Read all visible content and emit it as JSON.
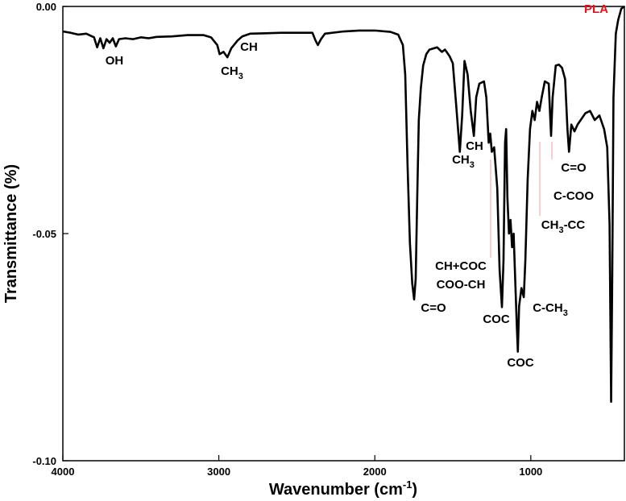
{
  "chart_data": {
    "type": "line",
    "x_label": {
      "text": "Wavenumber (cm",
      "sup": "-1",
      "close": ")"
    },
    "y_label": "Transmittance (%)",
    "xlim": [
      4000,
      400
    ],
    "ylim": [
      -0.1,
      0.0
    ],
    "xticks": [
      4000,
      3000,
      2000,
      1000
    ],
    "yticks": [
      {
        "value": 0.0,
        "label": "0.00"
      },
      {
        "value": -0.05,
        "label": "-0.05"
      },
      {
        "value": -0.1,
        "label": "-0.10"
      }
    ],
    "x": [
      4000,
      3950,
      3900,
      3850,
      3800,
      3780,
      3760,
      3740,
      3720,
      3700,
      3680,
      3660,
      3640,
      3600,
      3550,
      3500,
      3450,
      3400,
      3300,
      3200,
      3100,
      3050,
      3010,
      2995,
      2970,
      2945,
      2920,
      2880,
      2850,
      2800,
      2700,
      2600,
      2500,
      2400,
      2380,
      2365,
      2345,
      2320,
      2200,
      2100,
      2000,
      1900,
      1850,
      1820,
      1805,
      1790,
      1775,
      1760,
      1748,
      1738,
      1728,
      1718,
      1705,
      1690,
      1670,
      1650,
      1620,
      1600,
      1570,
      1550,
      1520,
      1500,
      1480,
      1455,
      1440,
      1425,
      1405,
      1385,
      1365,
      1350,
      1330,
      1300,
      1285,
      1270,
      1260,
      1250,
      1235,
      1215,
      1200,
      1185,
      1175,
      1165,
      1158,
      1150,
      1140,
      1130,
      1120,
      1110,
      1100,
      1090,
      1083,
      1075,
      1060,
      1045,
      1035,
      1020,
      1005,
      990,
      975,
      960,
      945,
      930,
      910,
      885,
      870,
      860,
      840,
      820,
      800,
      780,
      765,
      755,
      740,
      720,
      700,
      680,
      650,
      620,
      590,
      560,
      530,
      510,
      495,
      485,
      478,
      470,
      455,
      440,
      420,
      400
    ],
    "series": [
      {
        "color": "#000000",
        "values": [
          -0.0055,
          -0.0058,
          -0.0062,
          -0.006,
          -0.0068,
          -0.009,
          -0.007,
          -0.0092,
          -0.0072,
          -0.008,
          -0.007,
          -0.0088,
          -0.0072,
          -0.007,
          -0.0072,
          -0.0068,
          -0.007,
          -0.0067,
          -0.0066,
          -0.0063,
          -0.0063,
          -0.0068,
          -0.0085,
          -0.0105,
          -0.01,
          -0.0112,
          -0.0092,
          -0.0075,
          -0.0066,
          -0.006,
          -0.0059,
          -0.0058,
          -0.0058,
          -0.0058,
          -0.0075,
          -0.0085,
          -0.0072,
          -0.006,
          -0.0055,
          -0.0053,
          -0.0053,
          -0.0056,
          -0.0062,
          -0.0085,
          -0.015,
          -0.035,
          -0.052,
          -0.061,
          -0.0645,
          -0.06,
          -0.042,
          -0.025,
          -0.018,
          -0.013,
          -0.0105,
          -0.0095,
          -0.0092,
          -0.009,
          -0.01,
          -0.0095,
          -0.011,
          -0.0125,
          -0.021,
          -0.032,
          -0.024,
          -0.012,
          -0.015,
          -0.023,
          -0.0285,
          -0.02,
          -0.017,
          -0.0165,
          -0.02,
          -0.03,
          -0.028,
          -0.032,
          -0.031,
          -0.04,
          -0.058,
          -0.0662,
          -0.056,
          -0.03,
          -0.027,
          -0.042,
          -0.05,
          -0.047,
          -0.053,
          -0.05,
          -0.06,
          -0.07,
          -0.076,
          -0.066,
          -0.062,
          -0.064,
          -0.056,
          -0.038,
          -0.027,
          -0.023,
          -0.025,
          -0.021,
          -0.023,
          -0.02,
          -0.0165,
          -0.017,
          -0.0285,
          -0.02,
          -0.013,
          -0.0128,
          -0.0135,
          -0.016,
          -0.027,
          -0.032,
          -0.026,
          -0.0275,
          -0.026,
          -0.025,
          -0.0235,
          -0.023,
          -0.025,
          -0.024,
          -0.027,
          -0.031,
          -0.048,
          -0.087,
          -0.06,
          -0.02,
          -0.006,
          -0.003,
          -0.0005,
          0.0
        ]
      }
    ],
    "annotations": [
      {
        "text": "OH"
      },
      {
        "text": "CH"
      },
      {
        "text": "CH",
        "sub": "3"
      },
      {
        "text": "C=O"
      },
      {
        "text": "CH+COC"
      },
      {
        "text": "COO-CH"
      },
      {
        "text": "COC"
      },
      {
        "text": "C-CH",
        "sub": "3"
      },
      {
        "text": "COC"
      },
      {
        "text": "CH"
      },
      {
        "text": "CH",
        "sub": "3"
      },
      {
        "text": "C=O"
      },
      {
        "text": "C-COO"
      },
      {
        "text": "CH",
        "sub": "3",
        "rest": "-CC"
      },
      {
        "text": "PLA",
        "color": "#e8141c"
      }
    ]
  }
}
